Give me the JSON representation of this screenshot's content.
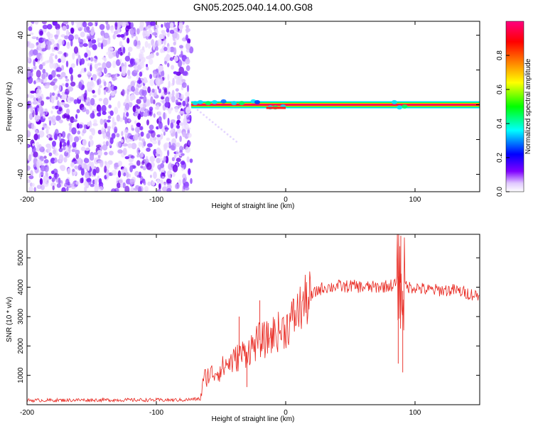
{
  "title": "GN05.2025.040.14.00.G08",
  "colors": {
    "snr_line": "#e8261e",
    "axis": "#000000"
  },
  "chart_data": [
    {
      "type": "heatmap",
      "xlabel": "Height of straight line (km)",
      "ylabel": "Frequency (Hz)",
      "xlim": [
        -200,
        150
      ],
      "ylim": [
        -50,
        48
      ],
      "xticks": [
        -200,
        -100,
        0,
        100
      ],
      "yticks": [
        -40,
        -20,
        0,
        20,
        40
      ],
      "noise_region_x": [
        -200,
        -73
      ],
      "signal_band_start_x": -73,
      "signal_frequency_hz": 0,
      "colorbar": {
        "label": "Normalized spectral amplitude",
        "range": [
          0,
          1
        ],
        "ticks": [
          0.0,
          0.2,
          0.4,
          0.6,
          0.8
        ],
        "colormap": [
          "#ffffff",
          "#7f00ff",
          "#0000ff",
          "#00ffff",
          "#00ff00",
          "#ffff00",
          "#ff8000",
          "#ff0000",
          "#ff0080"
        ]
      }
    },
    {
      "type": "line",
      "xlabel": "Height of straight line (km)",
      "ylabel": "SNR (10 * v/v)",
      "xlim": [
        -200,
        150
      ],
      "ylim": [
        0,
        5800
      ],
      "xticks": [
        -200,
        -100,
        0,
        100
      ],
      "yticks": [
        1000,
        2000,
        3000,
        4000,
        5000
      ],
      "series": [
        {
          "x": [
            -200,
            -180,
            -160,
            -140,
            -120,
            -100,
            -80,
            -66,
            -63,
            -60,
            -55,
            -50,
            -45,
            -40,
            -35,
            -30,
            -25,
            -20,
            -15,
            -10,
            -5,
            0,
            5,
            10,
            15,
            20,
            25,
            30,
            35,
            40,
            45,
            50,
            60,
            70,
            80,
            85,
            88,
            90,
            92,
            95,
            100,
            110,
            120,
            130,
            140,
            150
          ],
          "y": [
            150,
            150,
            160,
            160,
            160,
            160,
            160,
            200,
            900,
            1000,
            1100,
            1200,
            1400,
            1500,
            1700,
            1800,
            2000,
            2200,
            2200,
            2400,
            2500,
            2600,
            2900,
            3200,
            3500,
            3700,
            3900,
            4000,
            4000,
            4050,
            4000,
            4050,
            4000,
            4000,
            4050,
            4100,
            4500,
            3800,
            4100,
            4000,
            4000,
            3900,
            3900,
            3900,
            3800,
            3700
          ]
        }
      ]
    }
  ]
}
